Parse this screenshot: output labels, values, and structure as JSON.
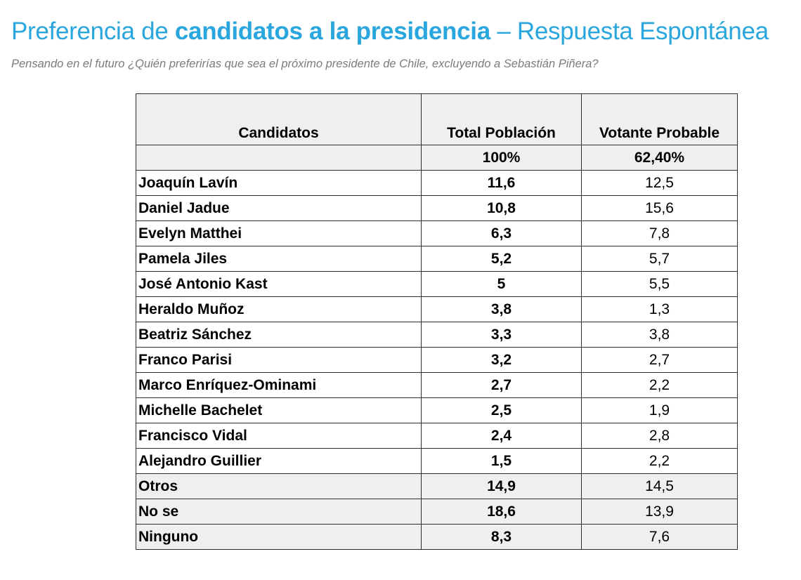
{
  "title": {
    "part1": "Preferencia de ",
    "part2": "candidatos a la presidencia",
    "part3": " – Respuesta Espontánea"
  },
  "subtitle": "Pensando en el futuro ¿Quién preferirías que sea el próximo presidente de Chile, excluyendo a Sebastián Piñera?",
  "table": {
    "headers": [
      "Candidatos",
      "Total  Población",
      "Votante Probable"
    ],
    "base": [
      "",
      "100%",
      "62,40%"
    ],
    "rows": [
      {
        "name": "Joaquín Lavín",
        "total": "11,6",
        "probable": "12,5"
      },
      {
        "name": "Daniel Jadue",
        "total": "10,8",
        "probable": "15,6"
      },
      {
        "name": "Evelyn Matthei",
        "total": "6,3",
        "probable": "7,8"
      },
      {
        "name": "Pamela Jiles",
        "total": "5,2",
        "probable": "5,7"
      },
      {
        "name": "José Antonio Kast",
        "total": "5",
        "probable": "5,5"
      },
      {
        "name": "Heraldo Muñoz",
        "total": "3,8",
        "probable": "1,3"
      },
      {
        "name": "Beatriz Sánchez",
        "total": "3,3",
        "probable": "3,8"
      },
      {
        "name": "Franco Parisi",
        "total": "3,2",
        "probable": "2,7"
      },
      {
        "name": "Marco Enríquez-Ominami",
        "total": "2,7",
        "probable": "2,2"
      },
      {
        "name": "Michelle Bachelet",
        "total": "2,5",
        "probable": "1,9"
      },
      {
        "name": "Francisco Vidal",
        "total": "2,4",
        "probable": "2,8"
      },
      {
        "name": "Alejandro Guillier",
        "total": "1,5",
        "probable": "2,2"
      },
      {
        "name": "Otros",
        "total": "14,9",
        "probable": "14,5"
      },
      {
        "name": "No se",
        "total": "18,6",
        "probable": "13,9"
      },
      {
        "name": "Ninguno",
        "total": "8,3",
        "probable": "7,6"
      }
    ]
  },
  "colors": {
    "title": "#29a6dd",
    "subtitle": "#7b7b7b",
    "shaded_cell": "#efefef",
    "border": "#2d2d2d"
  }
}
